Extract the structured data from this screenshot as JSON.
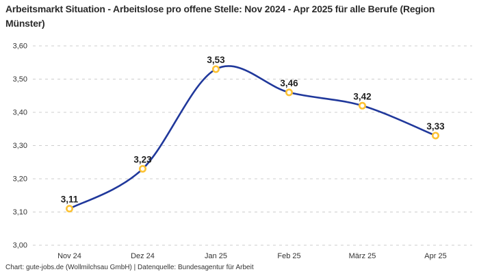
{
  "header": {
    "title": "Arbeitsmarkt Situation - Arbeitslose pro offene Stelle: Nov 2024 - Apr 2025 für alle Berufe (Region Münster)"
  },
  "footer": {
    "credit": "Chart: gute-jobs.de (Wollmilchsau GmbH) | Datenquelle: Bundesagentur für Arbeit"
  },
  "chart_data": {
    "type": "line",
    "title": "Arbeitsmarkt Situation - Arbeitslose pro offene Stelle: Nov 2024 - Apr 2025 für alle Berufe (Region Münster)",
    "categories": [
      "Nov 24",
      "Dez 24",
      "Jan 25",
      "Feb 25",
      "März 25",
      "Apr 25"
    ],
    "values": [
      3.11,
      3.23,
      3.53,
      3.46,
      3.42,
      3.33
    ],
    "point_labels": [
      "3,11",
      "3,23",
      "3,53",
      "3,46",
      "3,42",
      "3,33"
    ],
    "xlabel": "",
    "ylabel": "",
    "ylim": [
      3.0,
      3.6
    ],
    "ytick_step": 0.1,
    "ytick_labels": [
      "3,00",
      "3,10",
      "3,20",
      "3,30",
      "3,40",
      "3,50",
      "3,60"
    ],
    "grid": "horizontal-dashed",
    "legend": "none",
    "line_style": "smooth-spline",
    "marker_style": "ring",
    "colors": {
      "line": "#20389b",
      "marker_ring": "#fdc233",
      "marker_fill": "#ffffff",
      "grid": "#cccccc",
      "axis_text": "#333333",
      "point_label_text": "#1f1f1f",
      "title_text": "#2b2b2b",
      "background": "#ffffff"
    }
  }
}
